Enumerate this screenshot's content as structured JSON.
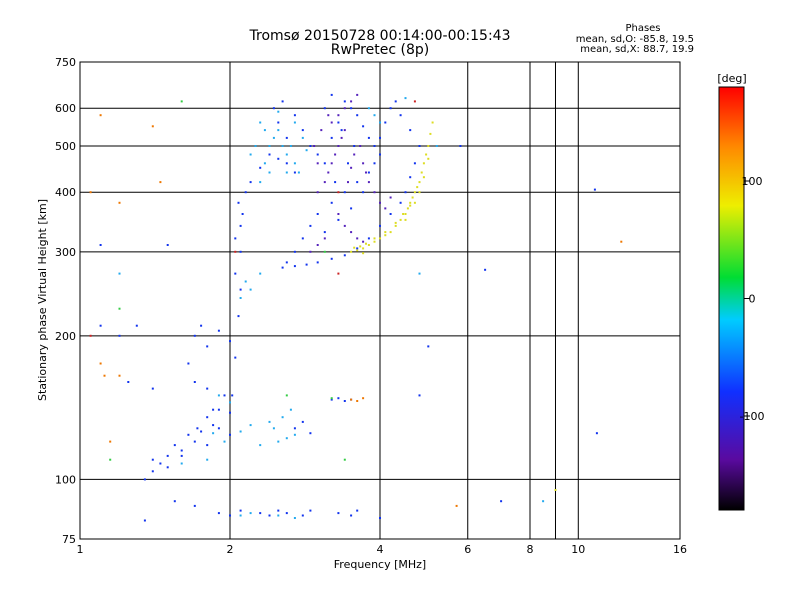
{
  "chart_data": {
    "type": "scatter",
    "title": "Tromsø 20150728 00:14:00-00:15:43",
    "subtitle": "RwPretec (8p)",
    "xlabel": "Frequency [MHz]",
    "ylabel": "Stationary phase Virtual Height [km]",
    "x_scale": "log",
    "y_scale": "log",
    "xlim": [
      1,
      16
    ],
    "ylim": [
      75,
      750
    ],
    "x_ticks": [
      1,
      2,
      4,
      6,
      8,
      10,
      16
    ],
    "y_ticks": [
      75,
      100,
      200,
      300,
      400,
      500,
      600,
      750
    ],
    "x_ticks_minor": [
      9
    ],
    "grid": true,
    "stats_header": "Phases",
    "stats_o": "mean, sd,O: -85.8, 19.5",
    "stats_x": "mean, sd,X:  88.7, 19.9",
    "colorbar": {
      "label": "[deg]",
      "range": [
        -180,
        180
      ],
      "ticks": [
        100,
        0,
        -100
      ]
    },
    "series": [
      {
        "color": "#1133ee",
        "points": [
          [
            1.35,
            100
          ],
          [
            1.4,
            104
          ],
          [
            1.45,
            108
          ],
          [
            1.5,
            106
          ],
          [
            1.6,
            112
          ],
          [
            1.7,
            120
          ],
          [
            1.75,
            126
          ],
          [
            1.8,
            118
          ],
          [
            1.85,
            130
          ],
          [
            1.9,
            140
          ],
          [
            1.95,
            150
          ],
          [
            2.0,
            138
          ],
          [
            1.7,
            160
          ],
          [
            1.8,
            155
          ],
          [
            1.65,
            175
          ],
          [
            1.7,
            200
          ],
          [
            1.75,
            210
          ],
          [
            1.8,
            190
          ],
          [
            1.9,
            205
          ],
          [
            2.0,
            195
          ],
          [
            1.5,
            112
          ],
          [
            1.6,
            115
          ],
          [
            1.55,
            118
          ],
          [
            1.65,
            124
          ],
          [
            1.72,
            128
          ],
          [
            1.8,
            135
          ],
          [
            1.85,
            140
          ],
          [
            1.9,
            128
          ],
          [
            2.0,
            124
          ],
          [
            2.02,
            150
          ],
          [
            2.05,
            180
          ],
          [
            2.08,
            220
          ],
          [
            2.1,
            250
          ],
          [
            2.05,
            270
          ],
          [
            2.1,
            300
          ],
          [
            2.05,
            320
          ],
          [
            2.1,
            340
          ],
          [
            2.12,
            360
          ],
          [
            2.08,
            380
          ],
          [
            2.15,
            400
          ],
          [
            2.2,
            420
          ],
          [
            2.3,
            450
          ],
          [
            2.4,
            480
          ],
          [
            2.5,
            470
          ],
          [
            2.6,
            460
          ],
          [
            2.7,
            440
          ],
          [
            2.6,
            520
          ],
          [
            2.5,
            560
          ],
          [
            2.45,
            600
          ],
          [
            2.55,
            620
          ],
          [
            2.7,
            580
          ],
          [
            2.8,
            540
          ],
          [
            2.9,
            500
          ],
          [
            3.0,
            480
          ],
          [
            3.1,
            460
          ],
          [
            3.2,
            520
          ],
          [
            3.3,
            560
          ],
          [
            3.1,
            600
          ],
          [
            3.2,
            640
          ],
          [
            3.4,
            620
          ],
          [
            3.5,
            600
          ],
          [
            3.6,
            580
          ],
          [
            3.7,
            550
          ],
          [
            3.8,
            520
          ],
          [
            3.9,
            500
          ],
          [
            4.0,
            480
          ],
          [
            3.8,
            440
          ],
          [
            3.6,
            420
          ],
          [
            3.4,
            400
          ],
          [
            3.2,
            380
          ],
          [
            3.0,
            360
          ],
          [
            2.9,
            340
          ],
          [
            2.8,
            320
          ],
          [
            2.7,
            300
          ],
          [
            2.6,
            285
          ],
          [
            2.55,
            278
          ],
          [
            2.7,
            280
          ],
          [
            2.85,
            282
          ],
          [
            3.0,
            285
          ],
          [
            3.2,
            290
          ],
          [
            3.4,
            295
          ],
          [
            3.6,
            305
          ],
          [
            3.8,
            320
          ],
          [
            4.0,
            340
          ],
          [
            4.2,
            360
          ],
          [
            4.4,
            380
          ],
          [
            4.5,
            400
          ],
          [
            4.6,
            430
          ],
          [
            4.7,
            460
          ],
          [
            4.8,
            500
          ],
          [
            4.6,
            540
          ],
          [
            4.4,
            580
          ],
          [
            4.3,
            620
          ],
          [
            4.2,
            600
          ],
          [
            4.1,
            560
          ],
          [
            4.0,
            520
          ],
          [
            3.9,
            460
          ],
          [
            3.7,
            400
          ],
          [
            3.5,
            370
          ],
          [
            3.3,
            350
          ],
          [
            3.1,
            330
          ],
          [
            3.25,
            420
          ],
          [
            3.45,
            460
          ],
          [
            3.55,
            500
          ],
          [
            3.35,
            540
          ],
          [
            2.3,
            85
          ],
          [
            2.4,
            84
          ],
          [
            2.5,
            86
          ],
          [
            2.6,
            85
          ],
          [
            2.8,
            84
          ],
          [
            2.9,
            86
          ],
          [
            3.3,
            85
          ],
          [
            3.5,
            84
          ],
          [
            3.6,
            86
          ],
          [
            4.0,
            83
          ],
          [
            1.9,
            85
          ],
          [
            2.0,
            84
          ],
          [
            2.1,
            86
          ],
          [
            2.7,
            128
          ],
          [
            2.8,
            132
          ],
          [
            2.9,
            125
          ],
          [
            3.2,
            147
          ],
          [
            3.3,
            148
          ],
          [
            3.4,
            146
          ],
          [
            3.5,
            147
          ],
          [
            1.35,
            82
          ],
          [
            1.55,
            90
          ],
          [
            1.7,
            88
          ],
          [
            4.8,
            150
          ],
          [
            5.0,
            190
          ],
          [
            5.8,
            500
          ],
          [
            6.5,
            275
          ],
          [
            7.0,
            90
          ],
          [
            10.8,
            405
          ],
          [
            10.9,
            125
          ],
          [
            1.1,
            210
          ],
          [
            1.2,
            200
          ],
          [
            1.3,
            210
          ],
          [
            1.4,
            155
          ],
          [
            1.1,
            310
          ],
          [
            1.5,
            310
          ],
          [
            1.4,
            110
          ],
          [
            1.25,
            160
          ]
        ]
      },
      {
        "color": "#22aaee",
        "points": [
          [
            2.3,
            420
          ],
          [
            2.35,
            460
          ],
          [
            2.4,
            500
          ],
          [
            2.45,
            520
          ],
          [
            2.5,
            540
          ],
          [
            2.55,
            500
          ],
          [
            2.6,
            480
          ],
          [
            2.65,
            500
          ],
          [
            2.7,
            460
          ],
          [
            2.75,
            440
          ],
          [
            2.8,
            520
          ],
          [
            2.85,
            490
          ],
          [
            2.4,
            440
          ],
          [
            2.6,
            440
          ],
          [
            2.3,
            560
          ],
          [
            2.5,
            590
          ],
          [
            2.7,
            560
          ],
          [
            2.2,
            480
          ],
          [
            2.25,
            500
          ],
          [
            2.35,
            540
          ],
          [
            1.85,
            125
          ],
          [
            1.95,
            120
          ],
          [
            2.1,
            126
          ],
          [
            2.2,
            130
          ],
          [
            2.4,
            132
          ],
          [
            2.5,
            120
          ],
          [
            2.6,
            122
          ],
          [
            2.7,
            124
          ],
          [
            2.3,
            118
          ],
          [
            2.45,
            128
          ],
          [
            2.55,
            135
          ],
          [
            2.65,
            140
          ],
          [
            1.9,
            150
          ],
          [
            2.0,
            145
          ],
          [
            1.8,
            110
          ],
          [
            1.6,
            108
          ],
          [
            2.1,
            84
          ],
          [
            2.2,
            85
          ],
          [
            2.5,
            84
          ],
          [
            2.7,
            83
          ],
          [
            3.8,
            600
          ],
          [
            3.9,
            580
          ],
          [
            4.0,
            560
          ],
          [
            4.5,
            630
          ],
          [
            2.1,
            240
          ],
          [
            2.15,
            260
          ],
          [
            2.2,
            250
          ],
          [
            2.3,
            270
          ],
          [
            4.8,
            270
          ],
          [
            5.2,
            500
          ],
          [
            8.5,
            90
          ],
          [
            1.2,
            270
          ]
        ]
      },
      {
        "color": "#5522bb",
        "points": [
          [
            3.0,
            400
          ],
          [
            3.1,
            420
          ],
          [
            3.15,
            440
          ],
          [
            3.2,
            460
          ],
          [
            3.25,
            480
          ],
          [
            3.3,
            500
          ],
          [
            3.35,
            520
          ],
          [
            3.4,
            540
          ],
          [
            3.2,
            560
          ],
          [
            3.3,
            580
          ],
          [
            3.4,
            600
          ],
          [
            3.5,
            620
          ],
          [
            3.6,
            640
          ],
          [
            3.0,
            460
          ],
          [
            2.95,
            500
          ],
          [
            3.05,
            540
          ],
          [
            3.15,
            580
          ],
          [
            3.45,
            420
          ],
          [
            3.5,
            450
          ],
          [
            3.55,
            480
          ],
          [
            3.65,
            500
          ],
          [
            3.7,
            460
          ],
          [
            3.75,
            440
          ],
          [
            3.8,
            420
          ],
          [
            3.9,
            400
          ],
          [
            4.0,
            380
          ],
          [
            4.1,
            370
          ],
          [
            4.2,
            390
          ],
          [
            3.3,
            360
          ],
          [
            3.4,
            340
          ],
          [
            3.5,
            330
          ],
          [
            3.6,
            320
          ],
          [
            3.7,
            315
          ],
          [
            2.9,
            300
          ],
          [
            3.0,
            310
          ],
          [
            3.1,
            320
          ]
        ]
      },
      {
        "color": "#dddd22",
        "points": [
          [
            3.5,
            300
          ],
          [
            3.6,
            302
          ],
          [
            3.7,
            305
          ],
          [
            3.8,
            310
          ],
          [
            3.9,
            315
          ],
          [
            4.0,
            320
          ],
          [
            4.1,
            325
          ],
          [
            4.2,
            330
          ],
          [
            4.3,
            340
          ],
          [
            4.4,
            350
          ],
          [
            4.5,
            360
          ],
          [
            4.55,
            370
          ],
          [
            4.6,
            380
          ],
          [
            4.65,
            390
          ],
          [
            4.7,
            400
          ],
          [
            4.75,
            410
          ],
          [
            4.8,
            420
          ],
          [
            4.85,
            440
          ],
          [
            4.9,
            460
          ],
          [
            4.95,
            480
          ],
          [
            5.0,
            500
          ],
          [
            5.05,
            530
          ],
          [
            5.1,
            560
          ],
          [
            4.7,
            380
          ],
          [
            4.5,
            350
          ],
          [
            4.3,
            345
          ],
          [
            4.1,
            330
          ],
          [
            3.9,
            320
          ],
          [
            3.75,
            312
          ],
          [
            3.65,
            308
          ],
          [
            4.45,
            360
          ],
          [
            4.6,
            375
          ],
          [
            4.8,
            400
          ],
          [
            4.9,
            430
          ],
          [
            5.0,
            470
          ],
          [
            3.55,
            306
          ],
          [
            3.7,
            298
          ],
          [
            9.0,
            95
          ]
        ]
      },
      {
        "color": "#ee7700",
        "points": [
          [
            1.1,
            580
          ],
          [
            1.4,
            550
          ],
          [
            1.45,
            420
          ],
          [
            1.2,
            380
          ],
          [
            1.1,
            175
          ],
          [
            1.12,
            165
          ],
          [
            1.2,
            165
          ],
          [
            3.5,
            147
          ],
          [
            3.6,
            146
          ],
          [
            3.7,
            148
          ],
          [
            5.7,
            88
          ],
          [
            12.2,
            315
          ],
          [
            1.15,
            120
          ],
          [
            1.05,
            400
          ]
        ]
      },
      {
        "color": "#33cc44",
        "points": [
          [
            1.6,
            620
          ],
          [
            1.2,
            228
          ],
          [
            1.15,
            110
          ],
          [
            3.2,
            148
          ],
          [
            3.4,
            110
          ],
          [
            2.6,
            150
          ],
          [
            3.1,
            300
          ]
        ]
      },
      {
        "color": "#cc2222",
        "points": [
          [
            3.3,
            270
          ],
          [
            1.05,
            200
          ],
          [
            2.05,
            300
          ],
          [
            4.7,
            620
          ],
          [
            3.3,
            400
          ]
        ]
      }
    ]
  }
}
